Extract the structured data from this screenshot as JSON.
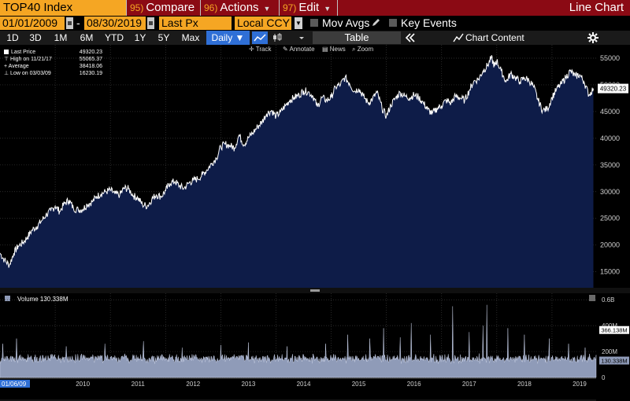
{
  "header": {
    "ticker": "TOP40 Index",
    "menu": [
      {
        "num": "95)",
        "label": "Compare"
      },
      {
        "num": "96)",
        "label": "Actions"
      },
      {
        "num": "97)",
        "label": "Edit"
      }
    ],
    "view_title": "Line Chart"
  },
  "controls": {
    "start_date": "01/01/2009",
    "end_date": "08/30/2019",
    "dash": "-",
    "field": "Last Px",
    "currency": "Local CCY",
    "mov_avgs": "Mov Avgs",
    "key_events": "Key Events"
  },
  "toolbar": {
    "ranges": [
      "1D",
      "3D",
      "1M",
      "6M",
      "YTD",
      "1Y",
      "5Y",
      "Max"
    ],
    "frequency": "Daily ▼",
    "table_label": "Table",
    "chart_content": "Chart Content",
    "subtools": [
      "Track",
      "Annotate",
      "News",
      "Zoom"
    ]
  },
  "colors": {
    "accent": "#f5a623",
    "header_red": "#8b0a14",
    "area_fill": "#0e1c48",
    "line": "#ffffff",
    "volume_fill": "#8f9bb8",
    "active": "#2f6fd6"
  },
  "chart_data": [
    {
      "type": "area",
      "title": "TOP40 Index",
      "legend": [
        {
          "label": "Last Price",
          "value": "49320.23"
        },
        {
          "label": "High on 11/21/17",
          "value": "55065.37"
        },
        {
          "label": "Average",
          "value": "38418.06"
        },
        {
          "label": "Low on 03/03/09",
          "value": "16230.19"
        }
      ],
      "last_value_label": "49320.23",
      "ylim": [
        12000,
        57500
      ],
      "y_ticks": [
        15000,
        20000,
        25000,
        30000,
        35000,
        40000,
        45000,
        50000,
        55000
      ],
      "xlim": [
        2009.0,
        2019.8
      ],
      "x_ticks": [
        "2010",
        "2011",
        "2012",
        "2013",
        "2014",
        "2015",
        "2016",
        "2017",
        "2018",
        "2019"
      ],
      "start_label": "01/06/09",
      "points": [
        [
          2009.0,
          18500
        ],
        [
          2009.08,
          17200
        ],
        [
          2009.17,
          16230
        ],
        [
          2009.25,
          18500
        ],
        [
          2009.33,
          19800
        ],
        [
          2009.42,
          20500
        ],
        [
          2009.5,
          21500
        ],
        [
          2009.58,
          22800
        ],
        [
          2009.67,
          23500
        ],
        [
          2009.75,
          24500
        ],
        [
          2009.83,
          25600
        ],
        [
          2009.92,
          26400
        ],
        [
          2010.0,
          27300
        ],
        [
          2010.08,
          26300
        ],
        [
          2010.17,
          27800
        ],
        [
          2010.25,
          28400
        ],
        [
          2010.33,
          26900
        ],
        [
          2010.42,
          26600
        ],
        [
          2010.5,
          26700
        ],
        [
          2010.58,
          27600
        ],
        [
          2010.67,
          28100
        ],
        [
          2010.75,
          29100
        ],
        [
          2010.83,
          29600
        ],
        [
          2010.92,
          30000
        ],
        [
          2011.0,
          30300
        ],
        [
          2011.08,
          29600
        ],
        [
          2011.17,
          29400
        ],
        [
          2011.25,
          30700
        ],
        [
          2011.33,
          30500
        ],
        [
          2011.42,
          29200
        ],
        [
          2011.5,
          28800
        ],
        [
          2011.58,
          27600
        ],
        [
          2011.67,
          27300
        ],
        [
          2011.75,
          28600
        ],
        [
          2011.83,
          29400
        ],
        [
          2011.92,
          29100
        ],
        [
          2012.0,
          30200
        ],
        [
          2012.08,
          31600
        ],
        [
          2012.17,
          31900
        ],
        [
          2012.25,
          31100
        ],
        [
          2012.33,
          30600
        ],
        [
          2012.42,
          31600
        ],
        [
          2012.5,
          32100
        ],
        [
          2012.58,
          32400
        ],
        [
          2012.67,
          33200
        ],
        [
          2012.75,
          34100
        ],
        [
          2012.83,
          35200
        ],
        [
          2012.92,
          36300
        ],
        [
          2013.0,
          38400
        ],
        [
          2013.08,
          38900
        ],
        [
          2013.17,
          38600
        ],
        [
          2013.25,
          38200
        ],
        [
          2013.33,
          40600
        ],
        [
          2013.42,
          38800
        ],
        [
          2013.5,
          40100
        ],
        [
          2013.58,
          41000
        ],
        [
          2013.67,
          42200
        ],
        [
          2013.75,
          43100
        ],
        [
          2013.83,
          44600
        ],
        [
          2013.92,
          45200
        ],
        [
          2014.0,
          44100
        ],
        [
          2014.08,
          44900
        ],
        [
          2014.17,
          46100
        ],
        [
          2014.25,
          47100
        ],
        [
          2014.33,
          47600
        ],
        [
          2014.42,
          48100
        ],
        [
          2014.5,
          48900
        ],
        [
          2014.58,
          48700
        ],
        [
          2014.67,
          47900
        ],
        [
          2014.75,
          45900
        ],
        [
          2014.83,
          47600
        ],
        [
          2014.92,
          47100
        ],
        [
          2015.0,
          47700
        ],
        [
          2015.08,
          49600
        ],
        [
          2015.17,
          50100
        ],
        [
          2015.25,
          51400
        ],
        [
          2015.33,
          50300
        ],
        [
          2015.42,
          48800
        ],
        [
          2015.5,
          49300
        ],
        [
          2015.58,
          47900
        ],
        [
          2015.67,
          46600
        ],
        [
          2015.75,
          47400
        ],
        [
          2015.83,
          48600
        ],
        [
          2015.92,
          45700
        ],
        [
          2016.0,
          44100
        ],
        [
          2016.08,
          46200
        ],
        [
          2016.17,
          47600
        ],
        [
          2016.25,
          48600
        ],
        [
          2016.33,
          47900
        ],
        [
          2016.42,
          47600
        ],
        [
          2016.5,
          48100
        ],
        [
          2016.58,
          47700
        ],
        [
          2016.67,
          46600
        ],
        [
          2016.75,
          45400
        ],
        [
          2016.83,
          44600
        ],
        [
          2016.92,
          45600
        ],
        [
          2017.0,
          46100
        ],
        [
          2017.08,
          47100
        ],
        [
          2017.17,
          46600
        ],
        [
          2017.25,
          47900
        ],
        [
          2017.33,
          47600
        ],
        [
          2017.42,
          47100
        ],
        [
          2017.5,
          48900
        ],
        [
          2017.58,
          50600
        ],
        [
          2017.67,
          51100
        ],
        [
          2017.75,
          52600
        ],
        [
          2017.83,
          53600
        ],
        [
          2017.9,
          55065
        ],
        [
          2017.96,
          53500
        ],
        [
          2018.0,
          54500
        ],
        [
          2018.08,
          52600
        ],
        [
          2018.17,
          50600
        ],
        [
          2018.25,
          52100
        ],
        [
          2018.33,
          51400
        ],
        [
          2018.42,
          50600
        ],
        [
          2018.5,
          51300
        ],
        [
          2018.58,
          50900
        ],
        [
          2018.67,
          49600
        ],
        [
          2018.75,
          47100
        ],
        [
          2018.83,
          45200
        ],
        [
          2018.92,
          45500
        ],
        [
          2019.0,
          47600
        ],
        [
          2019.08,
          49100
        ],
        [
          2019.17,
          50200
        ],
        [
          2019.25,
          51400
        ],
        [
          2019.33,
          52600
        ],
        [
          2019.42,
          51600
        ],
        [
          2019.5,
          51900
        ],
        [
          2019.58,
          50600
        ],
        [
          2019.67,
          48100
        ],
        [
          2019.75,
          49320
        ]
      ]
    },
    {
      "type": "area",
      "title": "Volume",
      "legend": [
        {
          "label": "Volume",
          "value": "130.338M"
        }
      ],
      "ylim": [
        0,
        650
      ],
      "y_ticks": [
        "0",
        "200M",
        "400M",
        "0.6B"
      ],
      "y_tick_values": [
        0,
        200,
        400,
        600
      ],
      "value_labels": [
        "366.138M",
        "130.338M"
      ],
      "value_label_levels": [
        366.138,
        130.338
      ],
      "unit": "M",
      "baseline": 130,
      "spikes": [
        [
          2009.05,
          260
        ],
        [
          2009.3,
          300
        ],
        [
          2010.2,
          240
        ],
        [
          2010.9,
          260
        ],
        [
          2011.6,
          280
        ],
        [
          2012.3,
          230
        ],
        [
          2013.0,
          250
        ],
        [
          2013.5,
          270
        ],
        [
          2014.2,
          240
        ],
        [
          2014.9,
          260
        ],
        [
          2015.3,
          330
        ],
        [
          2015.7,
          300
        ],
        [
          2015.95,
          380
        ],
        [
          2016.25,
          310
        ],
        [
          2016.45,
          420
        ],
        [
          2016.8,
          330
        ],
        [
          2017.2,
          550
        ],
        [
          2017.5,
          350
        ],
        [
          2017.75,
          400
        ],
        [
          2017.82,
          560
        ],
        [
          2018.2,
          380
        ],
        [
          2018.5,
          330
        ],
        [
          2018.95,
          300
        ],
        [
          2019.3,
          260
        ],
        [
          2019.6,
          230
        ]
      ]
    }
  ]
}
